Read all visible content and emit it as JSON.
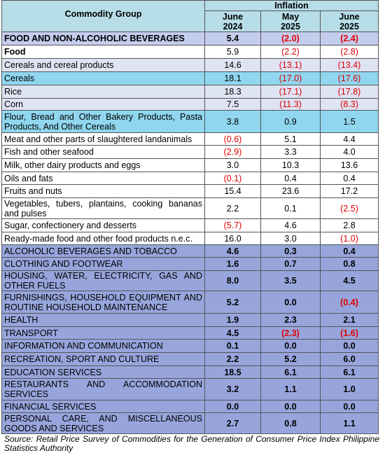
{
  "table": {
    "header": {
      "commodity_group": "Commodity Group",
      "inflation": "Inflation",
      "columns": [
        "June 2024",
        "May 2025",
        "June 2025"
      ]
    },
    "rows": [
      [
        "FOOD AND NON-ALCOHOLIC BEVERAGES",
        "5.4",
        "(2.0)",
        "(2.4)"
      ],
      [
        "Food",
        "5.9",
        "(2.2)",
        "(2.8)"
      ],
      [
        "Cereals and cereal products",
        "14.6",
        "(13.1)",
        "(13.4)"
      ],
      [
        "Cereals",
        "18.1",
        "(17.0)",
        "(17.6)"
      ],
      [
        "Rice",
        "18.3",
        "(17.1)",
        "(17.8)"
      ],
      [
        "Corn",
        "7.5",
        "(11.3)",
        "(8.3)"
      ],
      [
        "Flour, Bread and Other Bakery Products, Pasta Products, And Other Cereals",
        "3.8",
        "0.9",
        "1.5"
      ],
      [
        "Meat and other parts of slaughtered landanimals",
        "(0.6)",
        "5.1",
        "4.4"
      ],
      [
        "Fish and other seafood",
        "(2.9)",
        "3.3",
        "4.0"
      ],
      [
        "Milk, other dairy products and eggs",
        "3.0",
        "10.3",
        "13.6"
      ],
      [
        "Oils and fats",
        "(0.1)",
        "0.4",
        "0.4"
      ],
      [
        "Fruits and nuts",
        "15.4",
        "23.6",
        "17.2"
      ],
      [
        "Vegetables, tubers, plantains, cooking bananas and pulses",
        "2.2",
        "0.1",
        "(2.5)"
      ],
      [
        "Sugar, confectionery and desserts",
        "(5.7)",
        "4.6",
        "2.8"
      ],
      [
        "Ready-made food and other food products n.e.c.",
        "16.0",
        "3.0",
        "(1.0)"
      ],
      [
        "ALCOHOLIC BEVERAGES AND TOBACCO",
        "4.6",
        "0.3",
        "0.4"
      ],
      [
        "CLOTHING AND FOOTWEAR",
        "1.6",
        "0.7",
        "0.8"
      ],
      [
        "HOUSING, WATER, ELECTRICITY, GAS AND OTHER FUELS",
        "8.0",
        "3.5",
        "4.5"
      ],
      [
        "FURNISHINGS, HOUSEHOLD EQUIPMENT AND ROUTINE HOUSEHOLD MAINTENANCE",
        "5.2",
        "0.0",
        "(0.4)"
      ],
      [
        "HEALTH",
        "1.9",
        "2.3",
        "2.1"
      ],
      [
        "TRANSPORT",
        "4.5",
        "(2.3)",
        "(1.6)"
      ],
      [
        "INFORMATION AND COMMUNICATION",
        "0.1",
        "0.0",
        "0.0"
      ],
      [
        "RECREATION, SPORT AND CULTURE",
        "2.2",
        "5.2",
        "6.0"
      ],
      [
        "EDUCATION SERVICES",
        "18.5",
        "6.1",
        "6.1"
      ],
      [
        "RESTAURANTS AND ACCOMMODATION SERVICES",
        "3.2",
        "1.1",
        "1.0"
      ],
      [
        "FINANCIAL SERVICES",
        "0.0",
        "0.0",
        "0.0"
      ],
      [
        "PERSONAL CARE, AND MISCELLANEOUS GOODS AND SERVICES",
        "2.7",
        "0.8",
        "1.1"
      ]
    ]
  },
  "source": "Source: Retail Price Survey of Commodities for the Generation of Consumer Price Index Philippine Statistics Authority"
}
